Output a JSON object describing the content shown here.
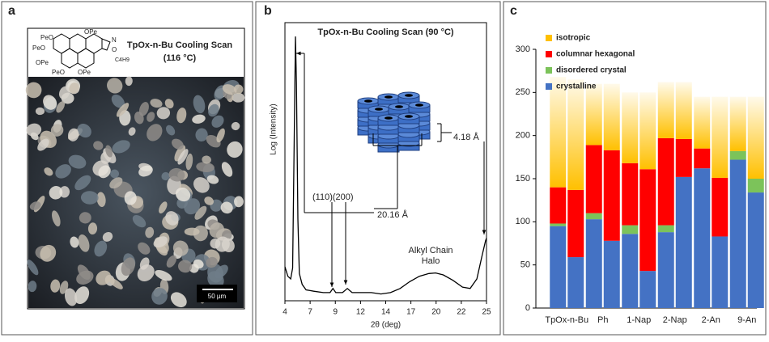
{
  "panel_a": {
    "label": "a",
    "title": "TpOx-n-Bu Cooling Scan",
    "subtitle": "(116 °C)",
    "scale_bar": "50 µm",
    "structure_labels": [
      "OPe",
      "PeO",
      "N",
      "O",
      "C4H9",
      "PeO",
      "OPe",
      "PeO",
      "OPe"
    ]
  },
  "chart_data": [
    {
      "type": "line",
      "panel_label": "b",
      "title": "TpOx-n-Bu Cooling Scan (90 °C)",
      "y_label": "Log (Intensity)",
      "x_label": "2θ (deg)",
      "annotations": [
        "(110)(200)",
        "20.16 Å",
        "4.18 Å",
        "Alkyl Chain",
        "Halo"
      ],
      "color": "#000000",
      "x": [
        4,
        4.3,
        4.6,
        4.8,
        5.0,
        5.1,
        5.2,
        5.35,
        5.5,
        5.8,
        6.2,
        7,
        8,
        8.7,
        9,
        9.3,
        10,
        10.5,
        11,
        12,
        13,
        14,
        15,
        16,
        17,
        18,
        19,
        19.7,
        20.5,
        21.5,
        22.5,
        23.3,
        24,
        24.5,
        24.9,
        25
      ],
      "values": [
        0.125,
        0.09,
        0.08,
        0.12,
        0.7,
        0.97,
        0.8,
        0.3,
        0.1,
        0.06,
        0.04,
        0.035,
        0.03,
        0.03,
        0.045,
        0.03,
        0.03,
        0.045,
        0.03,
        0.03,
        0.03,
        0.025,
        0.03,
        0.045,
        0.07,
        0.09,
        0.1,
        0.102,
        0.095,
        0.075,
        0.05,
        0.045,
        0.08,
        0.16,
        0.22,
        0.23
      ],
      "xlim": [
        4,
        25
      ],
      "ylim": [
        0,
        1
      ],
      "xticks": [
        4,
        {
          "value": 6.625,
          "label": "7"
        },
        {
          "value": 9.25,
          "label": "9"
        },
        {
          "value": 11.875,
          "label": "12"
        },
        {
          "value": 14.5,
          "label": "14"
        },
        {
          "value": 17.125,
          "label": "17"
        },
        {
          "value": 19.75,
          "label": "20"
        },
        {
          "value": 22.375,
          "label": "22"
        },
        25
      ]
    },
    {
      "type": "stacked_bar",
      "panel_label": "c",
      "categories": [
        "TpOx-n-Bu",
        null,
        "Ph",
        null,
        "1-Nap",
        null,
        "2-Nap",
        null,
        "2-An",
        null,
        "9-An",
        null
      ],
      "series": [
        {
          "name": "crystalline",
          "color": "#4472c4",
          "values": [
            95,
            59,
            103,
            78,
            86,
            43,
            88,
            152,
            162,
            83,
            172,
            134
          ]
        },
        {
          "name": "disordered crystal",
          "color": "#7cc35a",
          "values": [
            3,
            0,
            7,
            0,
            10,
            0,
            8,
            0,
            0,
            0,
            10,
            16
          ]
        },
        {
          "name": "columnar hexagonal",
          "color": "#ff0000",
          "values": [
            42,
            78,
            79,
            105,
            72,
            118,
            101,
            44,
            23,
            68,
            0,
            0
          ]
        },
        {
          "name": "isotropic",
          "color": "#ffc000",
          "values": [
            128,
            128,
            71,
            77,
            82,
            89,
            65,
            66,
            60,
            94,
            63,
            95
          ]
        }
      ],
      "ylim": [
        0,
        300
      ],
      "yticks": [
        0,
        50,
        100,
        150,
        200,
        250,
        300
      ],
      "legend": "top-left"
    }
  ]
}
